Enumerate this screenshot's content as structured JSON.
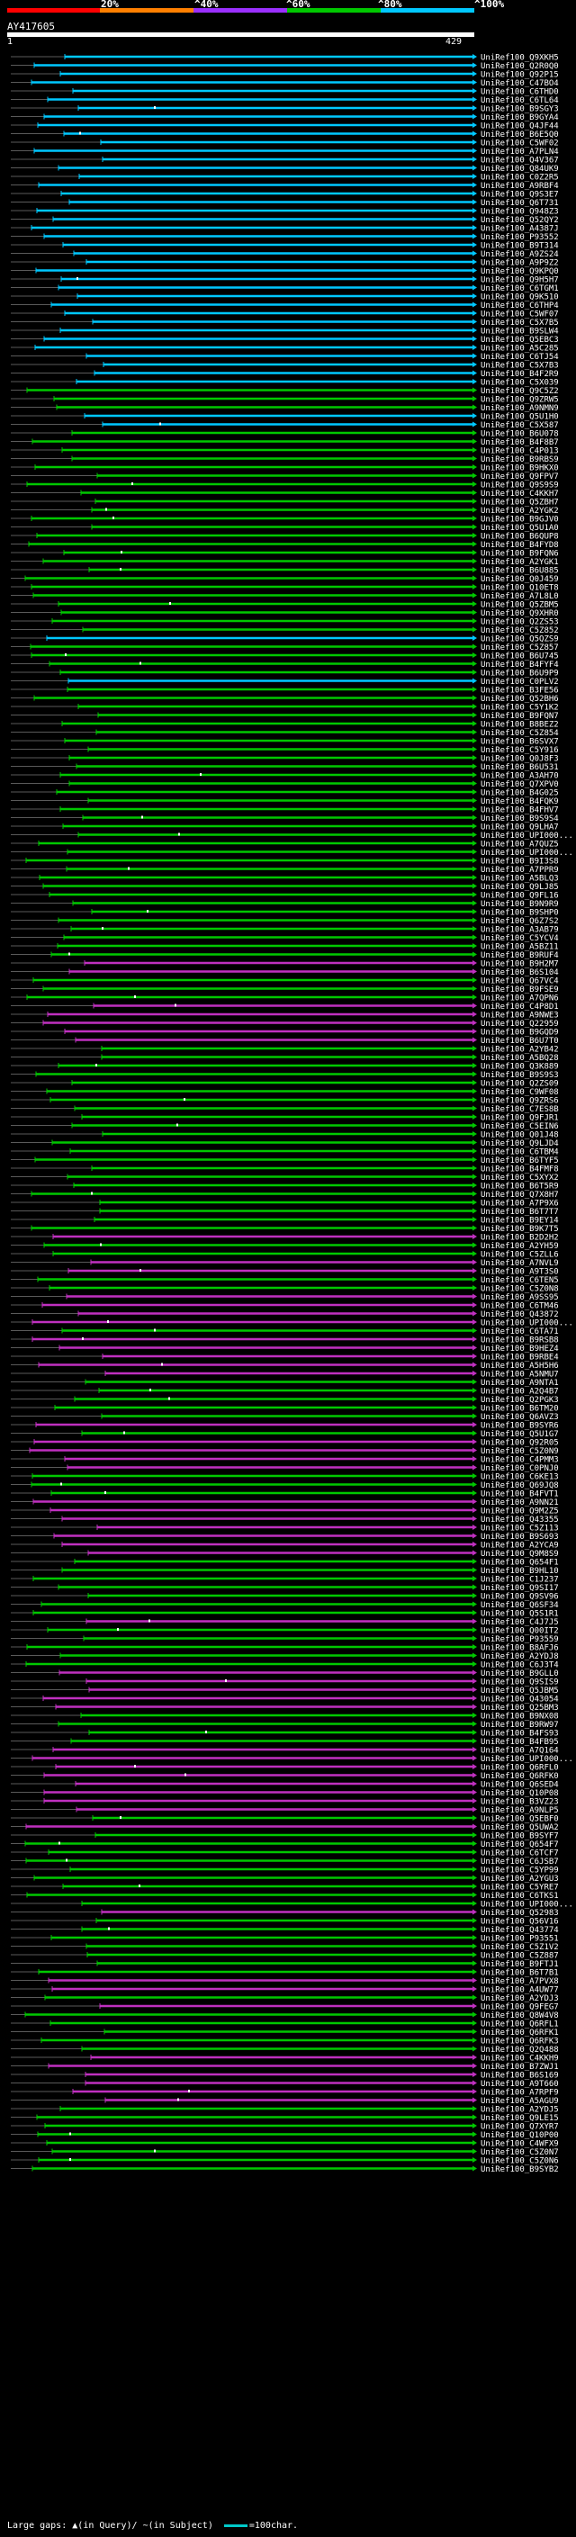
{
  "scale": {
    "labels": [
      "20%",
      "^40%",
      "^60%",
      "^80%",
      "^100%"
    ],
    "colors": [
      "#ff0000",
      "#ff7f00",
      "#9b30ff",
      "#00c800",
      "#00c8ff"
    ]
  },
  "query": {
    "title": "AY417605",
    "start_coord": "1",
    "end_coord": "429"
  },
  "footer": {
    "large_gaps_label": "Large gaps:",
    "query_gap_glyph": "▲",
    "query_gap_text": "(in Query)/",
    "subject_gap_glyph": "~",
    "subject_gap_text": "(in Subject)",
    "legend_text": "=100char."
  },
  "colors": {
    "identity_100": "#00c8ff",
    "identity_80": "#00c800",
    "identity_60": "#c030c0",
    "gap_line": "#5a5a5a",
    "query_bar": "#ffffff",
    "label_text": "#ffffff"
  },
  "hits": [
    {
      "id": "UniRef100_Q9XKH5",
      "pct": 100
    },
    {
      "id": "UniRef100_Q2R0Q0",
      "pct": 100
    },
    {
      "id": "UniRef100_Q92P15",
      "pct": 100
    },
    {
      "id": "UniRef100_C47BO4",
      "pct": 100
    },
    {
      "id": "UniRef100_C6THD0",
      "pct": 100
    },
    {
      "id": "UniRef100_C6TL64",
      "pct": 100
    },
    {
      "id": "UniRef100_B9SGY3",
      "pct": 100
    },
    {
      "id": "UniRef100_B9GYA4",
      "pct": 100
    },
    {
      "id": "UniRef100_Q4JF44",
      "pct": 100
    },
    {
      "id": "UniRef100_B6E5Q0",
      "pct": 100
    },
    {
      "id": "UniRef100_C5WF02",
      "pct": 100
    },
    {
      "id": "UniRef100_A7PLN4",
      "pct": 100
    },
    {
      "id": "UniRef100_Q4V367",
      "pct": 100
    },
    {
      "id": "UniRef100_Q84UK9",
      "pct": 100
    },
    {
      "id": "UniRef100_C0Z2R5",
      "pct": 100
    },
    {
      "id": "UniRef100_A9RBF4",
      "pct": 100
    },
    {
      "id": "UniRef100_Q9S3E7",
      "pct": 100
    },
    {
      "id": "UniRef100_Q6T731",
      "pct": 100
    },
    {
      "id": "UniRef100_Q948Z3",
      "pct": 100
    },
    {
      "id": "UniRef100_Q52QY2",
      "pct": 100
    },
    {
      "id": "UniRef100_A4387J",
      "pct": 100
    },
    {
      "id": "UniRef100_P93552",
      "pct": 100
    },
    {
      "id": "UniRef100_B9T314",
      "pct": 100
    },
    {
      "id": "UniRef100_A9ZS24",
      "pct": 100
    },
    {
      "id": "UniRef100_A9P9Z2",
      "pct": 100
    },
    {
      "id": "UniRef100_Q9KPQ0",
      "pct": 100
    },
    {
      "id": "UniRef100_Q9H5H7",
      "pct": 100
    },
    {
      "id": "UniRef100_C6TGM1",
      "pct": 100
    },
    {
      "id": "UniRef100_Q9K510",
      "pct": 100
    },
    {
      "id": "UniRef100_C6THP4",
      "pct": 100
    },
    {
      "id": "UniRef100_C5WF07",
      "pct": 100
    },
    {
      "id": "UniRef100_C5X7B5",
      "pct": 100
    },
    {
      "id": "UniRef100_B9SLW4",
      "pct": 100
    },
    {
      "id": "UniRef100_Q5EBC3",
      "pct": 100
    },
    {
      "id": "UniRef100_A5C285",
      "pct": 100
    },
    {
      "id": "UniRef100_C6TJ54",
      "pct": 100
    },
    {
      "id": "UniRef100_C5X7B3",
      "pct": 100
    },
    {
      "id": "UniRef100_B4F2R9",
      "pct": 100
    },
    {
      "id": "UniRef100_C5X039",
      "pct": 100
    },
    {
      "id": "UniRef100_Q9C5Z2",
      "pct": 80
    },
    {
      "id": "UniRef100_Q9ZRW5",
      "pct": 80
    },
    {
      "id": "UniRef100_A9NMN9",
      "pct": 80
    },
    {
      "id": "UniRef100_Q5U1H0",
      "pct": 100
    },
    {
      "id": "UniRef100_C5X587",
      "pct": 100
    },
    {
      "id": "UniRef100_B6U078",
      "pct": 80
    },
    {
      "id": "UniRef100_B4F8B7",
      "pct": 80
    },
    {
      "id": "UniRef100_C4P013",
      "pct": 80
    },
    {
      "id": "UniRef100_B9RBS9",
      "pct": 80
    },
    {
      "id": "UniRef100_B9HKX0",
      "pct": 80
    },
    {
      "id": "UniRef100_Q9FPV7",
      "pct": 80
    },
    {
      "id": "UniRef100_Q9S9S9",
      "pct": 80
    },
    {
      "id": "UniRef100_C4KKH7",
      "pct": 80
    },
    {
      "id": "UniRef100_Q5ZBH7",
      "pct": 80
    },
    {
      "id": "UniRef100_A2YGK2",
      "pct": 80
    },
    {
      "id": "UniRef100_B9GJV0",
      "pct": 80
    },
    {
      "id": "UniRef100_Q5U1A0",
      "pct": 80
    },
    {
      "id": "UniRef100_B6QUP8",
      "pct": 80
    },
    {
      "id": "UniRef100_B4FYD8",
      "pct": 80
    },
    {
      "id": "UniRef100_B9FQN6",
      "pct": 80
    },
    {
      "id": "UniRef100_A2YGK1",
      "pct": 80
    },
    {
      "id": "UniRef100_B6U885",
      "pct": 80
    },
    {
      "id": "UniRef100_Q0J459",
      "pct": 80
    },
    {
      "id": "UniRef100_Q10ET8",
      "pct": 80
    },
    {
      "id": "UniRef100_A7L8L0",
      "pct": 80
    },
    {
      "id": "UniRef100_Q5ZBM5",
      "pct": 80
    },
    {
      "id": "UniRef100_Q9XHR0",
      "pct": 80
    },
    {
      "id": "UniRef100_Q2ZS53",
      "pct": 80
    },
    {
      "id": "UniRef100_C5Z852",
      "pct": 80
    },
    {
      "id": "UniRef100_Q5QZS9",
      "pct": 100
    },
    {
      "id": "UniRef100_C5Z857",
      "pct": 80
    },
    {
      "id": "UniRef100_B6U745",
      "pct": 80
    },
    {
      "id": "UniRef100_B4FYF4",
      "pct": 80
    },
    {
      "id": "UniRef100_B6U9P9",
      "pct": 80
    },
    {
      "id": "UniRef100_C0PLV2",
      "pct": 100
    },
    {
      "id": "UniRef100_B3FE56",
      "pct": 80
    },
    {
      "id": "UniRef100_Q52BH6",
      "pct": 80
    },
    {
      "id": "UniRef100_C5Y1K2",
      "pct": 80
    },
    {
      "id": "UniRef100_B9FQN7",
      "pct": 80
    },
    {
      "id": "UniRef100_B8BEZ2",
      "pct": 80
    },
    {
      "id": "UniRef100_C5Z854",
      "pct": 80
    },
    {
      "id": "UniRef100_B6SVX7",
      "pct": 80
    },
    {
      "id": "UniRef100_C5Y916",
      "pct": 80
    },
    {
      "id": "UniRef100_Q0J8F3",
      "pct": 80
    },
    {
      "id": "UniRef100_B6U531",
      "pct": 80
    },
    {
      "id": "UniRef100_A3AH70",
      "pct": 80
    },
    {
      "id": "UniRef100_Q7XPV0",
      "pct": 80
    },
    {
      "id": "UniRef100_B4G025",
      "pct": 80
    },
    {
      "id": "UniRef100_B4FQK9",
      "pct": 80
    },
    {
      "id": "UniRef100_B4FHV7",
      "pct": 80
    },
    {
      "id": "UniRef100_B9S9S4",
      "pct": 80
    },
    {
      "id": "UniRef100_Q9LHA7",
      "pct": 80
    },
    {
      "id": "UniRef100_UPI000...",
      "pct": 80
    },
    {
      "id": "UniRef100_A7QUZ5",
      "pct": 80
    },
    {
      "id": "UniRef100_UPI000...",
      "pct": 80
    },
    {
      "id": "UniRef100_B9I3S8",
      "pct": 80
    },
    {
      "id": "UniRef100_A7PPR9",
      "pct": 80
    },
    {
      "id": "UniRef100_A5BLQ3",
      "pct": 80
    },
    {
      "id": "UniRef100_Q9LJ85",
      "pct": 80
    },
    {
      "id": "UniRef100_Q9FL16",
      "pct": 80
    },
    {
      "id": "UniRef100_B9N9R9",
      "pct": 80
    },
    {
      "id": "UniRef100_B9SHP0",
      "pct": 80
    },
    {
      "id": "UniRef100_Q6Z7S2",
      "pct": 80
    },
    {
      "id": "UniRef100_A3AB79",
      "pct": 80
    },
    {
      "id": "UniRef100_C5YCV4",
      "pct": 80
    },
    {
      "id": "UniRef100_A5BZ11",
      "pct": 80
    },
    {
      "id": "UniRef100_B9RUF4",
      "pct": 80
    },
    {
      "id": "UniRef100_B9H2M7",
      "pct": 60
    },
    {
      "id": "UniRef100_B6S104",
      "pct": 60
    },
    {
      "id": "UniRef100_Q67VC4",
      "pct": 80
    },
    {
      "id": "UniRef100_B9FSE9",
      "pct": 80
    },
    {
      "id": "UniRef100_A7QPN6",
      "pct": 80
    },
    {
      "id": "UniRef100_C4P8D1",
      "pct": 60
    },
    {
      "id": "UniRef100_A9NWE3",
      "pct": 60
    },
    {
      "id": "UniRef100_Q22959",
      "pct": 60
    },
    {
      "id": "UniRef100_B9GQD9",
      "pct": 60
    },
    {
      "id": "UniRef100_B6U7T0",
      "pct": 60
    },
    {
      "id": "UniRef100_A2YB42",
      "pct": 80
    },
    {
      "id": "UniRef100_A5BQ28",
      "pct": 80
    },
    {
      "id": "UniRef100_Q3K889",
      "pct": 80
    },
    {
      "id": "UniRef100_B9S9S3",
      "pct": 80
    },
    {
      "id": "UniRef100_Q2ZS09",
      "pct": 80
    },
    {
      "id": "UniRef100_C9WF08",
      "pct": 80
    },
    {
      "id": "UniRef100_Q9ZRS6",
      "pct": 80
    },
    {
      "id": "UniRef100_C7ES8B",
      "pct": 80
    },
    {
      "id": "UniRef100_Q9FJR1",
      "pct": 80
    },
    {
      "id": "UniRef100_C5EIN6",
      "pct": 80
    },
    {
      "id": "UniRef100_Q01J48",
      "pct": 80
    },
    {
      "id": "UniRef100_Q9LJD4",
      "pct": 80
    },
    {
      "id": "UniRef100_C6TBM4",
      "pct": 80
    },
    {
      "id": "UniRef100_B6TYF5",
      "pct": 80
    },
    {
      "id": "UniRef100_B4FMF8",
      "pct": 80
    },
    {
      "id": "UniRef100_C5XYX2",
      "pct": 80
    },
    {
      "id": "UniRef100_B6T5R9",
      "pct": 80
    },
    {
      "id": "UniRef100_Q7X8H7",
      "pct": 80
    },
    {
      "id": "UniRef100_A7P9X6",
      "pct": 80
    },
    {
      "id": "UniRef100_B6T7T7",
      "pct": 80
    },
    {
      "id": "UniRef100_B9EY14",
      "pct": 80
    },
    {
      "id": "UniRef100_B9K7T5",
      "pct": 80
    },
    {
      "id": "UniRef100_B2D2H2",
      "pct": 60
    },
    {
      "id": "UniRef100_A2YH59",
      "pct": 80
    },
    {
      "id": "UniRef100_C5ZLL6",
      "pct": 80
    },
    {
      "id": "UniRef100_A7NVL9",
      "pct": 60
    },
    {
      "id": "UniRef100_A9T3S0",
      "pct": 60
    },
    {
      "id": "UniRef100_C6TEN5",
      "pct": 80
    },
    {
      "id": "UniRef100_C5Z0N8",
      "pct": 80
    },
    {
      "id": "UniRef100_A9SS95",
      "pct": 60
    },
    {
      "id": "UniRef100_C6TM46",
      "pct": 60
    },
    {
      "id": "UniRef100_Q43872",
      "pct": 60
    },
    {
      "id": "UniRef100_UPI000...",
      "pct": 60
    },
    {
      "id": "UniRef100_C6TA71",
      "pct": 80
    },
    {
      "id": "UniRef100_B9RSB8",
      "pct": 60
    },
    {
      "id": "UniRef100_B9HEZ4",
      "pct": 60
    },
    {
      "id": "UniRef100_B9RBE4",
      "pct": 60
    },
    {
      "id": "UniRef100_A5H5H6",
      "pct": 60
    },
    {
      "id": "UniRef100_A5NMU7",
      "pct": 60
    },
    {
      "id": "UniRef100_A9NTA1",
      "pct": 80
    },
    {
      "id": "UniRef100_A2Q4B7",
      "pct": 80
    },
    {
      "id": "UniRef100_Q2PGK3",
      "pct": 80
    },
    {
      "id": "UniRef100_B6TM20",
      "pct": 80
    },
    {
      "id": "UniRef100_Q6AVZ3",
      "pct": 80
    },
    {
      "id": "UniRef100_B9SYR6",
      "pct": 60
    },
    {
      "id": "UniRef100_Q5U1G7",
      "pct": 80
    },
    {
      "id": "UniRef100_Q92R05",
      "pct": 60
    },
    {
      "id": "UniRef100_C5Z0N9",
      "pct": 60
    },
    {
      "id": "UniRef100_C4PMM3",
      "pct": 60
    },
    {
      "id": "UniRef100_C0PNJ0",
      "pct": 60
    },
    {
      "id": "UniRef100_C6KE13",
      "pct": 80
    },
    {
      "id": "UniRef100_Q69JQ8",
      "pct": 80
    },
    {
      "id": "UniRef100_B4FVT1",
      "pct": 80
    },
    {
      "id": "UniRef100_A9NN21",
      "pct": 60
    },
    {
      "id": "UniRef100_Q9M2Z5",
      "pct": 60
    },
    {
      "id": "UniRef100_Q43355",
      "pct": 60
    },
    {
      "id": "UniRef100_C5Z113",
      "pct": 60
    },
    {
      "id": "UniRef100_B9S693",
      "pct": 60
    },
    {
      "id": "UniRef100_A2YCA9",
      "pct": 60
    },
    {
      "id": "UniRef100_Q9M8S9",
      "pct": 60
    },
    {
      "id": "UniRef100_Q654F1",
      "pct": 80
    },
    {
      "id": "UniRef100_B9HL10",
      "pct": 80
    },
    {
      "id": "UniRef100_C1J237",
      "pct": 80
    },
    {
      "id": "UniRef100_Q9SI17",
      "pct": 80
    },
    {
      "id": "UniRef100_Q9SV96",
      "pct": 80
    },
    {
      "id": "UniRef100_Q6SF34",
      "pct": 80
    },
    {
      "id": "UniRef100_Q5S1R1",
      "pct": 80
    },
    {
      "id": "UniRef100_C4J7J5",
      "pct": 60
    },
    {
      "id": "UniRef100_Q00IT2",
      "pct": 80
    },
    {
      "id": "UniRef100_P93559",
      "pct": 80
    },
    {
      "id": "UniRef100_B8AFJ6",
      "pct": 80
    },
    {
      "id": "UniRef100_A2YDJ8",
      "pct": 80
    },
    {
      "id": "UniRef100_C6J3T4",
      "pct": 80
    },
    {
      "id": "UniRef100_B9GLL0",
      "pct": 60
    },
    {
      "id": "UniRef100_Q9SIS9",
      "pct": 60
    },
    {
      "id": "UniRef100_Q5JBM5",
      "pct": 60
    },
    {
      "id": "UniRef100_Q43054",
      "pct": 60
    },
    {
      "id": "UniRef100_Q25BM3",
      "pct": 60
    },
    {
      "id": "UniRef100_B9NX08",
      "pct": 80
    },
    {
      "id": "UniRef100_B9RW97",
      "pct": 80
    },
    {
      "id": "UniRef100_B4FS93",
      "pct": 80
    },
    {
      "id": "UniRef100_B4FB95",
      "pct": 80
    },
    {
      "id": "UniRef100_A7Q164",
      "pct": 60
    },
    {
      "id": "UniRef100_UPI000...",
      "pct": 60
    },
    {
      "id": "UniRef100_Q6RFL0",
      "pct": 60
    },
    {
      "id": "UniRef100_Q6RFK0",
      "pct": 60
    },
    {
      "id": "UniRef100_Q6SED4",
      "pct": 60
    },
    {
      "id": "UniRef100_Q10P08",
      "pct": 60
    },
    {
      "id": "UniRef100_B3VZ23",
      "pct": 60
    },
    {
      "id": "UniRef100_A9NLP5",
      "pct": 60
    },
    {
      "id": "UniRef100_Q5EBF0",
      "pct": 80
    },
    {
      "id": "UniRef100_Q5UWA2",
      "pct": 60
    },
    {
      "id": "UniRef100_B9SYF7",
      "pct": 80
    },
    {
      "id": "UniRef100_Q654F7",
      "pct": 80
    },
    {
      "id": "UniRef100_C6TCF7",
      "pct": 80
    },
    {
      "id": "UniRef100_C6JSB7",
      "pct": 80
    },
    {
      "id": "UniRef100_C5YP99",
      "pct": 80
    },
    {
      "id": "UniRef100_A2YGU3",
      "pct": 80
    },
    {
      "id": "UniRef100_C5YRE7",
      "pct": 80
    },
    {
      "id": "UniRef100_C6TKS1",
      "pct": 80
    },
    {
      "id": "UniRef100_UPI000...",
      "pct": 80
    },
    {
      "id": "UniRef100_Q52983",
      "pct": 60
    },
    {
      "id": "UniRef100_Q56V16",
      "pct": 80
    },
    {
      "id": "UniRef100_Q43774",
      "pct": 80
    },
    {
      "id": "UniRef100_P93551",
      "pct": 80
    },
    {
      "id": "UniRef100_C5Z1V2",
      "pct": 80
    },
    {
      "id": "UniRef100_C5Z887",
      "pct": 80
    },
    {
      "id": "UniRef100_B9FTJ1",
      "pct": 80
    },
    {
      "id": "UniRef100_B6T7B1",
      "pct": 80
    },
    {
      "id": "UniRef100_A7PVX8",
      "pct": 60
    },
    {
      "id": "UniRef100_A4UW77",
      "pct": 60
    },
    {
      "id": "UniRef100_A2YDJ3",
      "pct": 80
    },
    {
      "id": "UniRef100_Q9FEG7",
      "pct": 60
    },
    {
      "id": "UniRef100_Q8W4V8",
      "pct": 80
    },
    {
      "id": "UniRef100_Q6RFL1",
      "pct": 80
    },
    {
      "id": "UniRef100_Q6RFK1",
      "pct": 80
    },
    {
      "id": "UniRef100_Q6RFK3",
      "pct": 80
    },
    {
      "id": "UniRef100_Q2Q488",
      "pct": 80
    },
    {
      "id": "UniRef100_C4KKH9",
      "pct": 60
    },
    {
      "id": "UniRef100_B7ZWJ1",
      "pct": 60
    },
    {
      "id": "UniRef100_B6S169",
      "pct": 60
    },
    {
      "id": "UniRef100_A9T660",
      "pct": 60
    },
    {
      "id": "UniRef100_A7RPF9",
      "pct": 60
    },
    {
      "id": "UniRef100_A5AGU9",
      "pct": 60
    },
    {
      "id": "UniRef100_A2YDJ5",
      "pct": 80
    },
    {
      "id": "UniRef100_Q9LE15",
      "pct": 80
    },
    {
      "id": "UniRef100_Q7XYR7",
      "pct": 80
    },
    {
      "id": "UniRef100_Q10P00",
      "pct": 80
    },
    {
      "id": "UniRef100_C4WFX9",
      "pct": 80
    },
    {
      "id": "UniRef100_C5Z0N7",
      "pct": 80
    },
    {
      "id": "UniRef100_C5Z0N6",
      "pct": 80
    },
    {
      "id": "UniRef100_B9SYB2",
      "pct": 80
    }
  ]
}
